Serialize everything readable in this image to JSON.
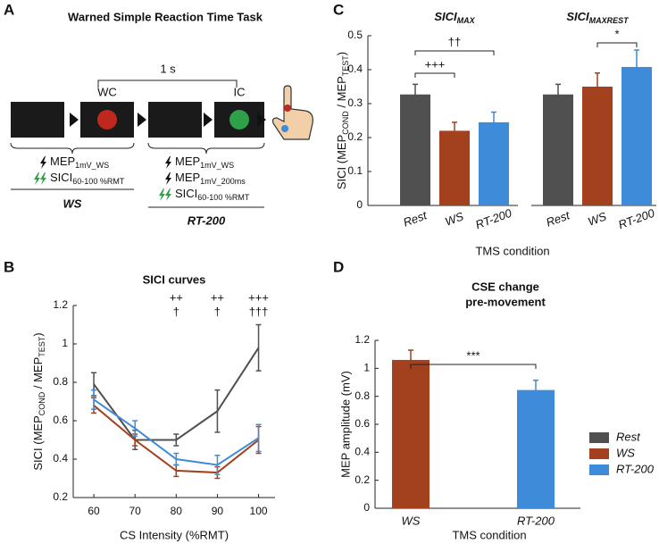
{
  "panels": [
    "A",
    "B",
    "C",
    "D"
  ],
  "diagram": {
    "title": "Warned Simple Reaction Time Task",
    "interval": "1 s",
    "cue_labels": [
      "WC",
      "IC"
    ],
    "ws_block": {
      "lines": [
        [
          "MEP",
          "1mV_WS"
        ],
        [
          "SICI",
          "60-100 %RMT"
        ]
      ],
      "label": "WS"
    },
    "rt_block": {
      "lines": [
        [
          "MEP",
          "1mV_WS"
        ],
        [
          "MEP",
          "1mV_200ms"
        ],
        [
          "SICI",
          "60-100 %RMT"
        ]
      ],
      "label": "RT-200"
    }
  },
  "chart_data": [
    {
      "type": "line",
      "title": "SICI curves",
      "ylabel": [
        "SICI (MEP",
        "COND",
        " / MEP",
        "TEST",
        ")"
      ],
      "xlabel": "CS Intensity (%RMT)",
      "x": [
        60,
        70,
        80,
        90,
        100
      ],
      "xlim": [
        55,
        104
      ],
      "xticks": [
        60,
        70,
        80,
        90,
        100
      ],
      "ylim": [
        0.2,
        1.2
      ],
      "yticks": [
        0.2,
        0.4,
        0.6,
        0.8,
        1,
        1.2
      ],
      "series": [
        {
          "name": "Rest",
          "color": "#505050",
          "values": [
            0.79,
            0.5,
            0.5,
            0.65,
            0.98
          ],
          "errors": [
            0.06,
            0.05,
            0.03,
            0.11,
            0.12
          ]
        },
        {
          "name": "WS",
          "color": "#a3401d",
          "values": [
            0.68,
            0.5,
            0.34,
            0.33,
            0.5
          ],
          "errors": [
            0.04,
            0.03,
            0.03,
            0.03,
            0.07
          ]
        },
        {
          "name": "RT-200",
          "color": "#3d8bd9",
          "values": [
            0.71,
            0.56,
            0.4,
            0.37,
            0.51
          ],
          "errors": [
            0.05,
            0.04,
            0.03,
            0.05,
            0.07
          ]
        }
      ],
      "annotations": [
        {
          "x": 80,
          "lines": [
            "++",
            "†"
          ]
        },
        {
          "x": 90,
          "lines": [
            "++",
            "†"
          ]
        },
        {
          "x": 100,
          "lines": [
            "+++",
            "†††"
          ]
        }
      ]
    },
    {
      "type": "bar",
      "ylabel": [
        "SICI (MEP",
        "COND",
        " / MEP",
        "TEST",
        ")"
      ],
      "xlabel": "TMS condition",
      "ylim": [
        0,
        0.5
      ],
      "yticks": [
        0,
        0.1,
        0.2,
        0.3,
        0.4,
        0.5
      ],
      "groups": [
        {
          "title": [
            "SICI",
            "MAX"
          ],
          "categories": [
            "Rest",
            "WS",
            "RT-200"
          ],
          "colors": [
            "#505050",
            "#a3401d",
            "#3d8bd9"
          ],
          "values": [
            0.327,
            0.22,
            0.245
          ],
          "errors": [
            0.03,
            0.025,
            0.03
          ],
          "annotations": [
            "+++",
            "††"
          ]
        },
        {
          "title": [
            "SICI",
            "MAXREST"
          ],
          "categories": [
            "Rest",
            "WS",
            "RT-200"
          ],
          "colors": [
            "#505050",
            "#a3401d",
            "#3d8bd9"
          ],
          "values": [
            0.327,
            0.35,
            0.408
          ],
          "errors": [
            0.03,
            0.04,
            0.05
          ],
          "annotations": [
            "*"
          ]
        }
      ]
    },
    {
      "type": "bar",
      "title": [
        "CSE change",
        "pre-movement"
      ],
      "ylabel": "MEP amplitude (mV)",
      "xlabel": "TMS condition",
      "categories": [
        "WS",
        "RT-200"
      ],
      "colors": [
        "#a3401d",
        "#3d8bd9"
      ],
      "values": [
        1.06,
        0.845
      ],
      "errors": [
        0.07,
        0.07
      ],
      "ylim": [
        0,
        1.2
      ],
      "yticks": [
        0,
        0.2,
        0.4,
        0.6,
        0.8,
        1,
        1.2
      ],
      "annotations": [
        "***"
      ]
    }
  ]
}
